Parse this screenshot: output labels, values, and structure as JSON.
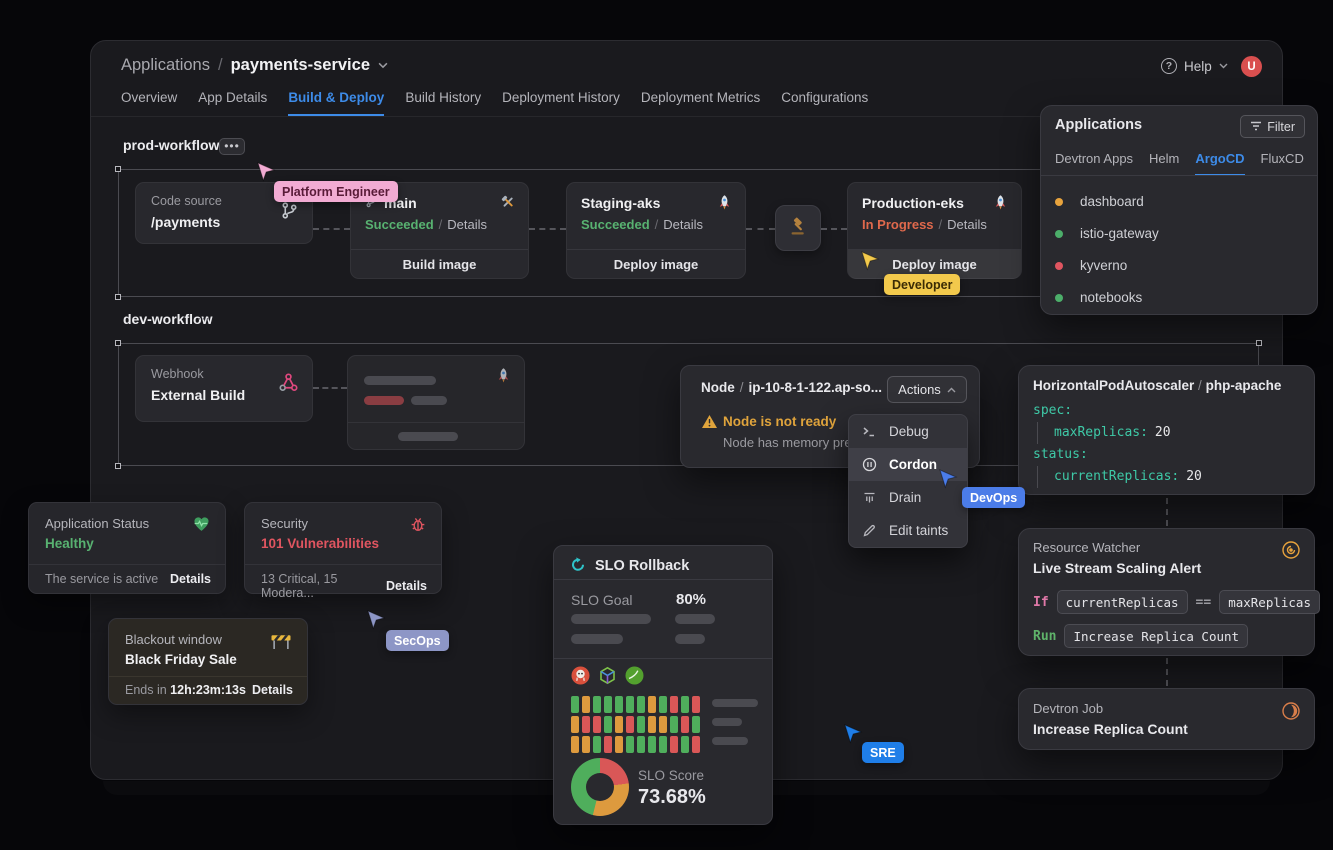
{
  "colors": {
    "accent": "#3d8be8",
    "green": "#58b271",
    "orange_progress": "#e0694c",
    "red": "#e05560",
    "warn": "#e0a43c",
    "teal": "#3ec9a7",
    "pink_kw": "#e078a8",
    "run_green": "#5fb36a"
  },
  "header": {
    "breadcrumb_root": "Applications",
    "sep": "/",
    "app_name": "payments-service",
    "help_label": "Help",
    "avatar_initial": "U"
  },
  "main_tabs": [
    "Overview",
    "App Details",
    "Build & Deploy",
    "Build History",
    "Deployment History",
    "Deployment Metrics",
    "Configurations"
  ],
  "prod_workflow": {
    "title": "prod-workflow",
    "kebab": "•••",
    "code_source": {
      "label": "Code source",
      "path": "/payments"
    },
    "build_node": {
      "branch": "main",
      "status": "Succeeded",
      "status_color": "#58b271",
      "details": "Details",
      "action": "Build image"
    },
    "staging_node": {
      "name": "Staging-aks",
      "status": "Succeeded",
      "status_color": "#58b271",
      "details": "Details",
      "action": "Deploy image"
    },
    "production_node": {
      "name": "Production-eks",
      "status": "In Progress",
      "status_color": "#e0694c",
      "details": "Details",
      "action": "Deploy image"
    }
  },
  "dev_workflow": {
    "title": "dev-workflow",
    "kebab": "⋯",
    "webhook_node": {
      "label": "Webhook",
      "name": "External Build"
    }
  },
  "apps_panel": {
    "title": "Applications",
    "filter_label": "Filter",
    "tabs": [
      "Devtron Apps",
      "Helm",
      "ArgoCD",
      "FluxCD"
    ],
    "items": [
      {
        "name": "dashboard",
        "color": "#e8a33d"
      },
      {
        "name": "istio-gateway",
        "color": "#4cae6a"
      },
      {
        "name": "kyverno",
        "color": "#e05560"
      },
      {
        "name": "notebooks",
        "color": "#4cae6a"
      }
    ]
  },
  "node_panel": {
    "resource": "Node",
    "sep": "/",
    "name": "ip-10-8-1-122.ap-so...",
    "actions_label": "Actions",
    "alert_title": "Node is not ready",
    "alert_desc": "Node has memory pre...",
    "menu": [
      {
        "label": "Debug"
      },
      {
        "label": "Cordon"
      },
      {
        "label": "Drain"
      },
      {
        "label": "Edit taints"
      }
    ]
  },
  "hpa_panel": {
    "resource_type": "HorizontalPodAutoscaler",
    "sep": "/",
    "name": "php-apache",
    "yaml": [
      {
        "key": "spec:",
        "value": ""
      },
      {
        "key": "maxReplicas:",
        "value": "20"
      },
      {
        "key": "status:",
        "value": ""
      },
      {
        "key": "currentReplicas:",
        "value": "20"
      }
    ]
  },
  "app_status_card": {
    "title": "Application Status",
    "value": "Healthy",
    "footer": "The service is active",
    "details": "Details"
  },
  "security_card": {
    "title": "Security",
    "value": "101 Vulnerabilities",
    "footer": "13 Critical, 15 Modera...",
    "details": "Details"
  },
  "blackout_card": {
    "title": "Blackout window",
    "value": "Black Friday Sale",
    "footer_prefix": "Ends in",
    "countdown": "12h:23m:13s",
    "details": "Details"
  },
  "slo_panel": {
    "title": "SLO Rollback",
    "goal_label": "SLO Goal",
    "goal_value": "80%",
    "score_label": "SLO Score",
    "score_value": "73.68%",
    "heatmap": {
      "colors": {
        "g": "#4fae5c",
        "o": "#dd9a3e",
        "r": "#d95757"
      },
      "rows": [
        [
          "g",
          "o",
          "g",
          "g",
          "g",
          "g",
          "g",
          "o",
          "g",
          "r",
          "g",
          "r"
        ],
        [
          "o",
          "r",
          "r",
          "g",
          "o",
          "r",
          "g",
          "o",
          "o",
          "g",
          "r",
          "g"
        ],
        [
          "o",
          "o",
          "g",
          "r",
          "o",
          "g",
          "g",
          "g",
          "g",
          "r",
          "g",
          "r"
        ]
      ]
    },
    "donut": [
      {
        "color": "#d95757",
        "pct": 23
      },
      {
        "color": "#dd9a3e",
        "pct": 31
      },
      {
        "color": "#4fae5c",
        "pct": 46
      }
    ]
  },
  "resource_watcher": {
    "title": "Resource Watcher",
    "subtitle": "Live Stream Scaling Alert",
    "if_keyword": "If",
    "lhs": "currentReplicas",
    "operator": "==",
    "rhs": "maxReplicas",
    "run_keyword": "Run",
    "action": "Increase Replica Count"
  },
  "devtron_job": {
    "title": "Devtron Job",
    "name": "Increase Replica Count"
  },
  "cursors": {
    "platform_engineer": {
      "label": "Platform Engineer",
      "color": "#f2abd3",
      "text": "#591b38"
    },
    "developer": {
      "label": "Developer",
      "color": "#f2c94c",
      "text": "#3b2c05"
    },
    "devops": {
      "label": "DevOps",
      "color": "#4b7ce8",
      "text": "#ffffff"
    },
    "secops": {
      "label": "SecOps",
      "color": "#8d96c6",
      "text": "#ffffff"
    },
    "sre": {
      "label": "SRE",
      "color": "#1f7ee8",
      "text": "#ffffff"
    }
  }
}
